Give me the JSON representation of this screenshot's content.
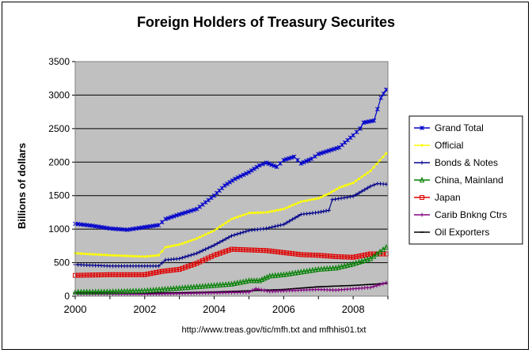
{
  "chart_data": {
    "type": "line",
    "title": "Foreign Holders of Treasury Securites",
    "xlabel": "",
    "ylabel": "Billions of dollars",
    "source": "http://www.treas.gov/tic/mfh.txt and mfhhis01.txt",
    "xlim": [
      2000,
      2009
    ],
    "ylim": [
      0,
      3500
    ],
    "xticks": [
      "2000",
      "2002",
      "2004",
      "2006",
      "2008"
    ],
    "yticks": [
      "0",
      "500",
      "1000",
      "1500",
      "2000",
      "2500",
      "3000",
      "3500"
    ],
    "grid": true,
    "legend_position": "right",
    "plot_background": "#c0c0c0",
    "series": [
      {
        "name": "Grand Total",
        "color": "#0000cc",
        "marker": "star",
        "x": [
          2000.0,
          2000.5,
          2001.0,
          2001.5,
          2002.0,
          2002.4,
          2002.6,
          2003.0,
          2003.5,
          2004.0,
          2004.3,
          2004.6,
          2005.0,
          2005.3,
          2005.5,
          2005.8,
          2006.0,
          2006.3,
          2006.5,
          2006.8,
          2007.0,
          2007.3,
          2007.6,
          2008.0,
          2008.2,
          2008.3,
          2008.6,
          2008.8,
          2008.95
        ],
        "values": [
          1080,
          1050,
          1010,
          990,
          1030,
          1060,
          1150,
          1220,
          1300,
          1500,
          1650,
          1750,
          1850,
          1950,
          1990,
          1930,
          2030,
          2080,
          1980,
          2050,
          2120,
          2170,
          2220,
          2400,
          2500,
          2590,
          2620,
          2960,
          3080
        ]
      },
      {
        "name": "Official",
        "color": "#ffff00",
        "marker": "dot",
        "x": [
          2000.0,
          2001.0,
          2002.0,
          2002.4,
          2002.6,
          2003.0,
          2003.5,
          2004.0,
          2004.5,
          2005.0,
          2005.5,
          2006.0,
          2006.5,
          2007.0,
          2007.3,
          2007.6,
          2008.0,
          2008.5,
          2008.95
        ],
        "values": [
          640,
          610,
          590,
          610,
          730,
          770,
          860,
          980,
          1150,
          1240,
          1250,
          1300,
          1410,
          1460,
          1530,
          1620,
          1690,
          1870,
          2130
        ]
      },
      {
        "name": "Bonds & Notes",
        "color": "#00008b",
        "marker": "plus",
        "x": [
          2000.0,
          2001.0,
          2002.0,
          2002.4,
          2002.6,
          2003.0,
          2003.5,
          2004.0,
          2004.5,
          2005.0,
          2005.5,
          2006.0,
          2006.5,
          2007.0,
          2007.3,
          2007.4,
          2008.0,
          2008.5,
          2008.7,
          2008.95
        ],
        "values": [
          470,
          450,
          450,
          450,
          540,
          560,
          640,
          760,
          900,
          980,
          1010,
          1070,
          1220,
          1250,
          1280,
          1440,
          1490,
          1640,
          1680,
          1670
        ]
      },
      {
        "name": "China, Mainland",
        "color": "#008000",
        "marker": "triangle",
        "x": [
          2000.0,
          2001.0,
          2002.0,
          2003.0,
          2004.0,
          2004.5,
          2005.0,
          2005.3,
          2005.6,
          2006.0,
          2006.5,
          2007.0,
          2007.5,
          2008.0,
          2008.5,
          2008.95
        ],
        "values": [
          60,
          65,
          80,
          120,
          160,
          180,
          230,
          230,
          300,
          320,
          360,
          400,
          420,
          480,
          560,
          730
        ]
      },
      {
        "name": "Japan",
        "color": "#e00000",
        "marker": "square",
        "x": [
          2000.0,
          2001.0,
          2002.0,
          2002.5,
          2003.0,
          2003.5,
          2004.0,
          2004.5,
          2005.0,
          2005.5,
          2006.0,
          2006.5,
          2007.0,
          2007.5,
          2008.0,
          2008.5,
          2008.95
        ],
        "values": [
          310,
          320,
          320,
          370,
          400,
          490,
          610,
          700,
          690,
          680,
          650,
          620,
          610,
          590,
          580,
          630,
          630
        ]
      },
      {
        "name": "Carib Bnkng Ctrs",
        "color": "#800080",
        "marker": "plus",
        "x": [
          2000.0,
          2001.0,
          2002.0,
          2003.0,
          2004.0,
          2005.0,
          2005.2,
          2005.6,
          2006.0,
          2007.0,
          2007.5,
          2008.0,
          2008.5,
          2008.95
        ],
        "values": [
          30,
          30,
          30,
          40,
          50,
          60,
          110,
          70,
          80,
          100,
          90,
          110,
          130,
          200
        ]
      },
      {
        "name": "Oil Exporters",
        "color": "#000000",
        "marker": "dash",
        "x": [
          2000.0,
          2001.0,
          2002.0,
          2003.0,
          2004.0,
          2005.0,
          2006.0,
          2007.0,
          2008.0,
          2008.95
        ],
        "values": [
          50,
          45,
          45,
          50,
          60,
          80,
          100,
          140,
          160,
          190
        ]
      }
    ]
  }
}
